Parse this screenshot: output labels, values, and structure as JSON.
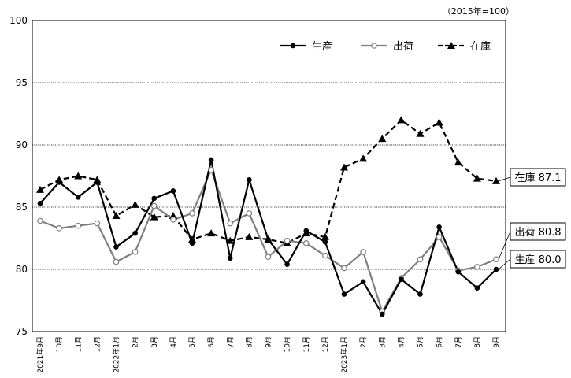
{
  "chart_data": {
    "type": "line",
    "unit_note": "（2015年=100）",
    "ylim": [
      75,
      100
    ],
    "yticks": [
      75,
      80,
      85,
      90,
      95,
      100
    ],
    "grid": true,
    "legend_position": "top-right",
    "categories": [
      "2021年9月",
      "10月",
      "11月",
      "12月",
      "2022年1月",
      "2月",
      "3月",
      "4月",
      "5月",
      "6月",
      "7月",
      "8月",
      "9月",
      "10月",
      "11月",
      "12月",
      "2023年1月",
      "2月",
      "3月",
      "4月",
      "5月",
      "6月",
      "7月",
      "8月",
      "9月"
    ],
    "series": [
      {
        "name": "生産",
        "color": "#000000",
        "marker": "filled-circle",
        "line": "solid",
        "values": [
          85.3,
          87.0,
          85.8,
          87.0,
          81.8,
          82.9,
          85.7,
          86.3,
          82.1,
          88.8,
          80.9,
          87.2,
          82.4,
          80.4,
          83.1,
          82.2,
          78.0,
          79.0,
          76.4,
          79.2,
          78.0,
          83.4,
          79.8,
          78.5,
          80.0
        ]
      },
      {
        "name": "出荷",
        "color": "#808080",
        "marker": "open-circle",
        "line": "solid",
        "values": [
          83.9,
          83.3,
          83.5,
          83.7,
          80.6,
          81.4,
          85.1,
          84.0,
          84.5,
          88.0,
          83.7,
          84.5,
          81.0,
          82.3,
          82.1,
          81.1,
          80.1,
          81.4,
          76.6,
          79.3,
          80.8,
          82.6,
          79.9,
          80.2,
          80.8
        ]
      },
      {
        "name": "在庫",
        "color": "#000000",
        "marker": "filled-triangle",
        "line": "dashed",
        "values": [
          86.4,
          87.2,
          87.5,
          87.2,
          84.3,
          85.2,
          84.2,
          84.3,
          82.4,
          82.9,
          82.3,
          82.6,
          82.4,
          82.1,
          82.9,
          82.6,
          88.2,
          88.9,
          90.5,
          92.0,
          90.9,
          91.8,
          88.6,
          87.3,
          87.1
        ]
      }
    ],
    "end_labels": [
      {
        "series": "在庫",
        "text": "在庫 87.1"
      },
      {
        "series": "出荷",
        "text": "出荷 80.8"
      },
      {
        "series": "生産",
        "text": "生産 80.0"
      }
    ]
  }
}
